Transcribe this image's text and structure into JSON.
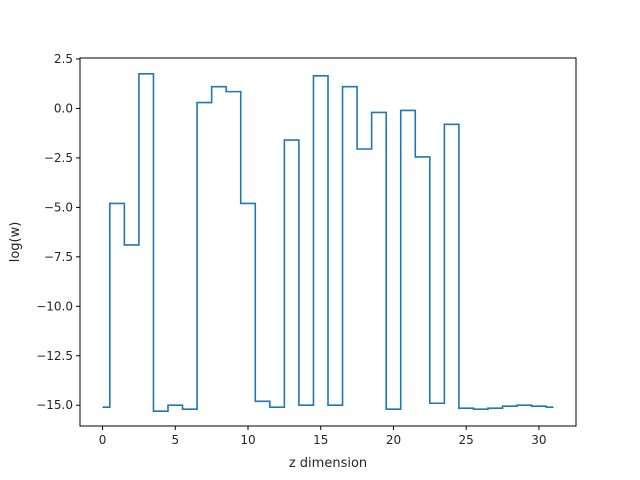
{
  "chart_data": {
    "type": "line",
    "drawstyle": "steps-mid",
    "title": "",
    "xlabel": "z dimension",
    "ylabel": "log(w)",
    "xlim": [
      -1.55,
      32.55
    ],
    "ylim": [
      -16.05,
      2.55
    ],
    "xticks": [
      0,
      5,
      10,
      15,
      20,
      25,
      30
    ],
    "yticks": [
      2.5,
      0.0,
      -2.5,
      -5.0,
      -7.5,
      -10.0,
      -12.5,
      -15.0
    ],
    "ytick_labels": [
      "2.5",
      "0.0",
      "−2.5",
      "−5.0",
      "−7.5",
      "−10.0",
      "−12.5",
      "−15.0"
    ],
    "grid": false,
    "series": [
      {
        "color": "#1f77b4",
        "x": [
          0,
          1,
          2,
          3,
          4,
          5,
          6,
          7,
          8,
          9,
          10,
          11,
          12,
          13,
          14,
          15,
          16,
          17,
          18,
          19,
          20,
          21,
          22,
          23,
          24,
          25,
          26,
          27,
          28,
          29,
          30,
          31
        ],
        "y": [
          -15.1,
          -4.8,
          -6.9,
          1.75,
          -15.3,
          -15.0,
          -15.2,
          0.3,
          1.1,
          0.85,
          -4.8,
          -14.8,
          -15.1,
          -1.6,
          -15.0,
          1.65,
          -15.0,
          1.1,
          -2.05,
          -0.2,
          -15.2,
          -0.1,
          -2.45,
          -14.9,
          -0.8,
          -15.15,
          -15.2,
          -15.15,
          -15.05,
          -15.0,
          -15.05,
          -15.1
        ]
      }
    ]
  }
}
